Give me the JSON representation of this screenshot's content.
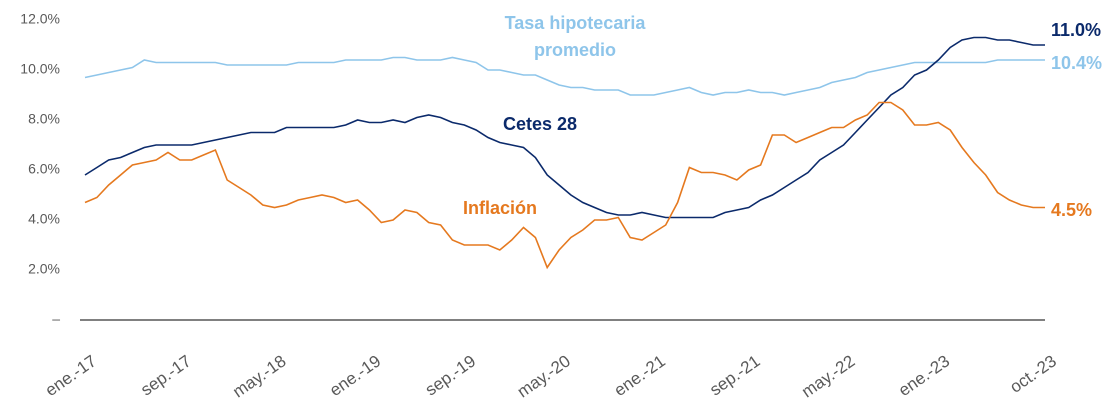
{
  "chart_data": {
    "type": "line",
    "categories": [
      "ene.-17",
      null,
      null,
      null,
      null,
      null,
      null,
      null,
      "sep.-17",
      null,
      null,
      null,
      null,
      null,
      null,
      null,
      "may.-18",
      null,
      null,
      null,
      null,
      null,
      null,
      null,
      "ene.-19",
      null,
      null,
      null,
      null,
      null,
      null,
      null,
      "sep.-19",
      null,
      null,
      null,
      null,
      null,
      null,
      null,
      "may.-20",
      null,
      null,
      null,
      null,
      null,
      null,
      null,
      "ene.-21",
      null,
      null,
      null,
      null,
      null,
      null,
      null,
      "sep.-21",
      null,
      null,
      null,
      null,
      null,
      null,
      null,
      "may.-22",
      null,
      null,
      null,
      null,
      null,
      null,
      null,
      "ene.-23",
      null,
      null,
      null,
      null,
      null,
      null,
      null,
      null,
      "oct.-23"
    ],
    "series": [
      {
        "name": "Tasa hipotecaria promedio",
        "color": "#8ec5ea",
        "values": [
          9.7,
          9.8,
          9.9,
          10.0,
          10.1,
          10.4,
          10.3,
          10.3,
          10.3,
          10.3,
          10.3,
          10.3,
          10.2,
          10.2,
          10.2,
          10.2,
          10.2,
          10.2,
          10.3,
          10.3,
          10.3,
          10.3,
          10.4,
          10.4,
          10.4,
          10.4,
          10.5,
          10.5,
          10.4,
          10.4,
          10.4,
          10.5,
          10.4,
          10.3,
          10.0,
          10.0,
          9.9,
          9.8,
          9.8,
          9.6,
          9.4,
          9.3,
          9.3,
          9.2,
          9.2,
          9.2,
          9.0,
          9.0,
          9.0,
          9.1,
          9.2,
          9.3,
          9.1,
          9.0,
          9.1,
          9.1,
          9.2,
          9.1,
          9.1,
          9.0,
          9.1,
          9.2,
          9.3,
          9.5,
          9.6,
          9.7,
          9.9,
          10.0,
          10.1,
          10.2,
          10.3,
          10.3,
          10.3,
          10.3,
          10.3,
          10.3,
          10.3,
          10.4,
          10.4,
          10.4,
          10.4,
          10.4
        ],
        "value_labels": [
          null,
          null,
          null,
          null,
          null,
          null,
          null,
          null,
          null,
          null,
          null,
          null,
          null,
          null,
          null,
          null,
          null,
          null,
          null,
          null,
          null,
          null,
          null,
          null,
          null,
          null,
          null,
          null,
          null,
          null,
          null,
          null,
          null,
          null,
          null,
          null,
          null,
          null,
          null,
          null,
          null,
          null,
          null,
          null,
          null,
          null,
          null,
          null,
          null,
          null,
          null,
          null,
          null,
          null,
          null,
          null,
          null,
          null,
          null,
          null,
          null,
          null,
          null,
          null,
          null,
          null,
          null,
          null,
          null,
          null,
          null,
          null,
          null,
          null,
          null,
          null,
          null,
          null,
          null,
          null,
          null,
          "10.4%"
        ]
      },
      {
        "name": "Cetes 28",
        "color": "#0b2a6b",
        "values": [
          5.8,
          6.1,
          6.4,
          6.5,
          6.7,
          6.9,
          7.0,
          7.0,
          7.0,
          7.0,
          7.1,
          7.2,
          7.3,
          7.4,
          7.5,
          7.5,
          7.5,
          7.7,
          7.7,
          7.7,
          7.7,
          7.7,
          7.8,
          8.0,
          7.9,
          7.9,
          8.0,
          7.9,
          8.1,
          8.2,
          8.1,
          7.9,
          7.8,
          7.6,
          7.3,
          7.1,
          7.0,
          6.9,
          6.5,
          5.8,
          5.4,
          5.0,
          4.7,
          4.5,
          4.3,
          4.2,
          4.2,
          4.3,
          4.2,
          4.1,
          4.1,
          4.1,
          4.1,
          4.1,
          4.3,
          4.4,
          4.5,
          4.8,
          5.0,
          5.3,
          5.6,
          5.9,
          6.4,
          6.7,
          7.0,
          7.5,
          8.0,
          8.5,
          9.0,
          9.3,
          9.8,
          10.0,
          10.4,
          10.9,
          11.2,
          11.3,
          11.3,
          11.2,
          11.2,
          11.1,
          11.0,
          11.0
        ],
        "value_labels": [
          null,
          null,
          null,
          null,
          null,
          null,
          null,
          null,
          null,
          null,
          null,
          null,
          null,
          null,
          null,
          null,
          null,
          null,
          null,
          null,
          null,
          null,
          null,
          null,
          null,
          null,
          null,
          null,
          null,
          null,
          null,
          null,
          null,
          null,
          null,
          null,
          null,
          null,
          null,
          null,
          null,
          null,
          null,
          null,
          null,
          null,
          null,
          null,
          null,
          null,
          null,
          null,
          null,
          null,
          null,
          null,
          null,
          null,
          null,
          null,
          null,
          null,
          null,
          null,
          null,
          null,
          null,
          null,
          null,
          null,
          null,
          null,
          null,
          null,
          null,
          null,
          null,
          null,
          null,
          null,
          null,
          "11.0%"
        ]
      },
      {
        "name": "Inflación",
        "color": "#e5791f",
        "values": [
          4.7,
          4.9,
          5.4,
          5.8,
          6.2,
          6.3,
          6.4,
          6.7,
          6.4,
          6.4,
          6.6,
          6.8,
          5.6,
          5.3,
          5.0,
          4.6,
          4.5,
          4.6,
          4.8,
          4.9,
          5.0,
          4.9,
          4.7,
          4.8,
          4.4,
          3.9,
          4.0,
          4.4,
          4.3,
          3.9,
          3.8,
          3.2,
          3.0,
          3.0,
          3.0,
          2.8,
          3.2,
          3.7,
          3.3,
          2.1,
          2.8,
          3.3,
          3.6,
          4.0,
          4.0,
          4.1,
          3.3,
          3.2,
          3.5,
          3.8,
          4.7,
          6.1,
          5.9,
          5.9,
          5.8,
          5.6,
          6.0,
          6.2,
          7.4,
          7.4,
          7.1,
          7.3,
          7.5,
          7.7,
          7.7,
          8.0,
          8.2,
          8.7,
          8.7,
          8.4,
          7.8,
          7.8,
          7.9,
          7.6,
          6.9,
          6.3,
          5.8,
          5.1,
          4.8,
          4.6,
          4.5,
          4.5
        ],
        "value_labels": [
          null,
          null,
          null,
          null,
          null,
          null,
          null,
          null,
          null,
          null,
          null,
          null,
          null,
          null,
          null,
          null,
          null,
          null,
          null,
          null,
          null,
          null,
          null,
          null,
          null,
          null,
          null,
          null,
          null,
          null,
          null,
          null,
          null,
          null,
          null,
          null,
          null,
          null,
          null,
          null,
          null,
          null,
          null,
          null,
          null,
          null,
          null,
          null,
          null,
          null,
          null,
          null,
          null,
          null,
          null,
          null,
          null,
          null,
          null,
          null,
          null,
          null,
          null,
          null,
          null,
          null,
          null,
          null,
          null,
          null,
          null,
          null,
          null,
          null,
          null,
          null,
          null,
          null,
          null,
          null,
          null,
          "4.5%"
        ]
      }
    ],
    "ylim": [
      0,
      12
    ],
    "yticks": [
      {
        "value": 0,
        "label": "–"
      },
      {
        "value": 2,
        "label": "2.0%"
      },
      {
        "value": 4,
        "label": "4.0%"
      },
      {
        "value": 6,
        "label": "6.0%"
      },
      {
        "value": 8,
        "label": "8.0%"
      },
      {
        "value": 10,
        "label": "10.0%"
      },
      {
        "value": 12,
        "label": "12.0%"
      }
    ],
    "grid": false
  }
}
